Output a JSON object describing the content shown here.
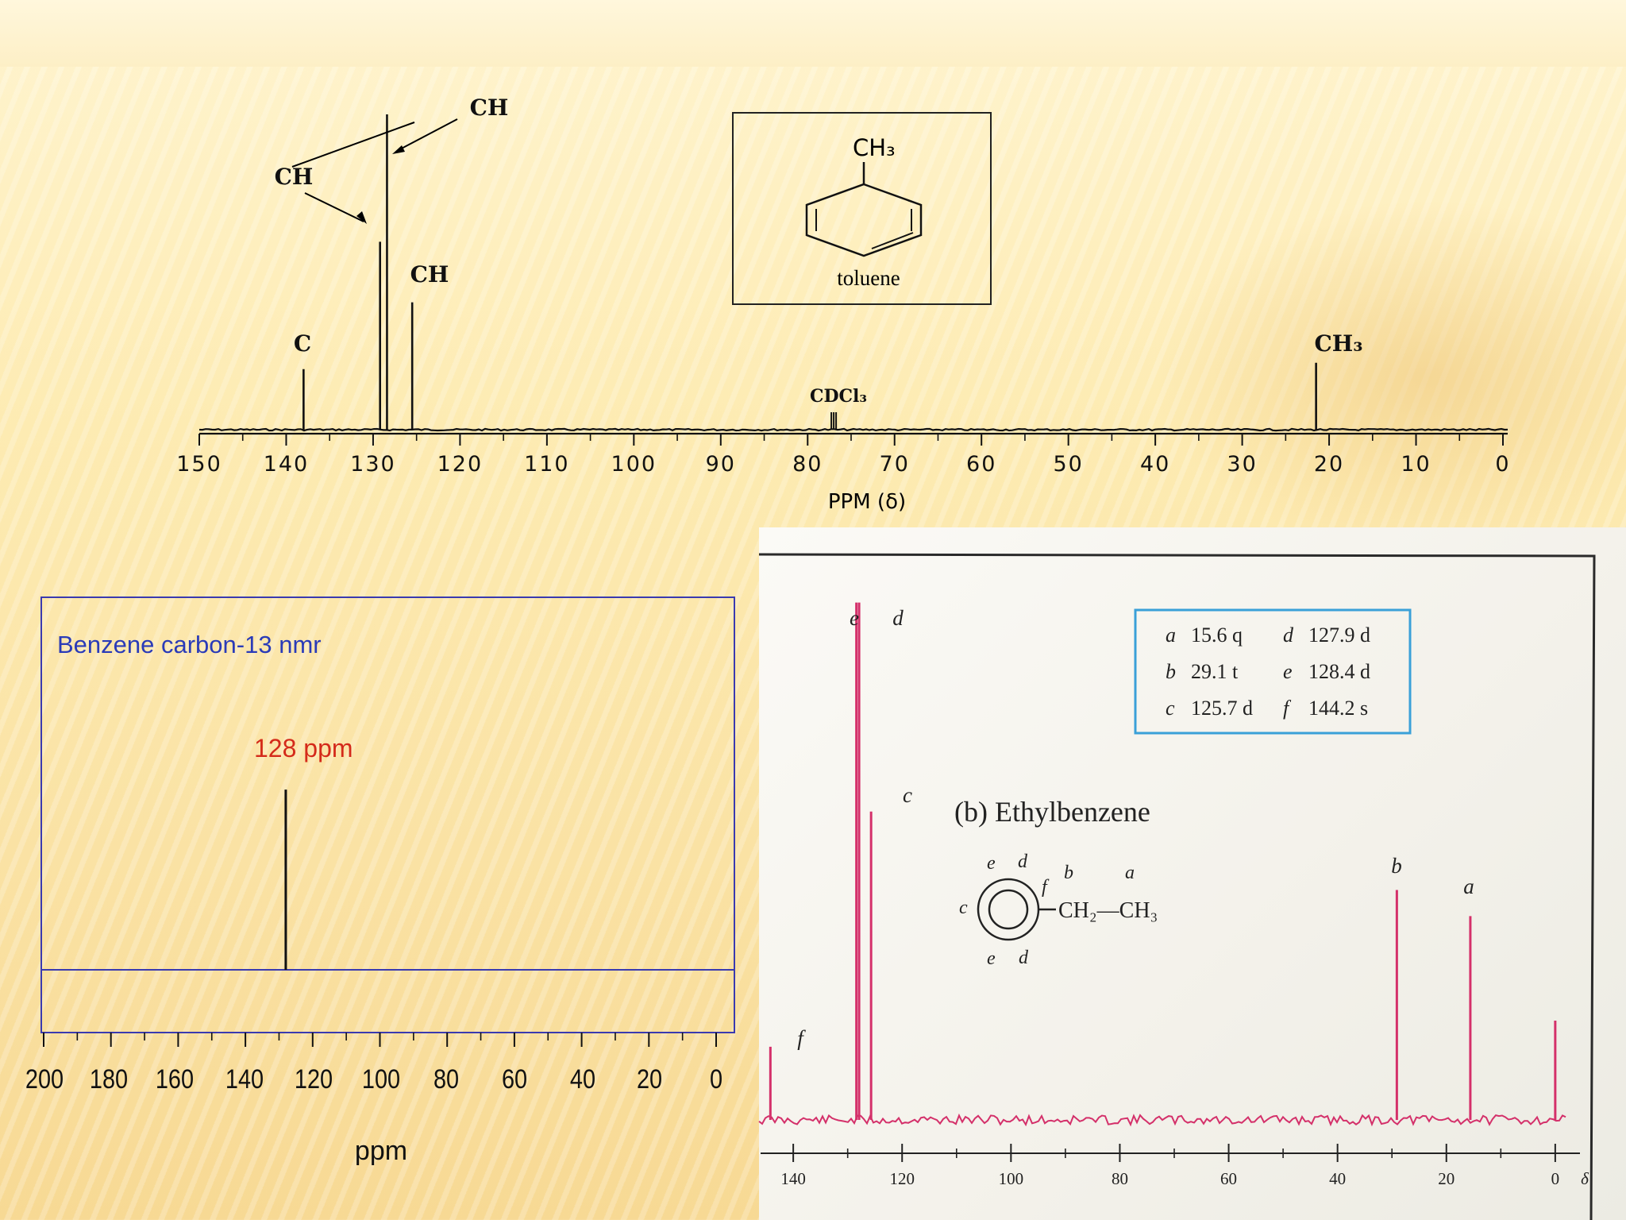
{
  "slide": {
    "background_color": "#fae2a4",
    "stripe_color": "#fff4cf"
  },
  "chart_data": [
    {
      "type": "line",
      "chart_id": "toluene",
      "xlabel": "PPM (δ)",
      "xlim": [
        150,
        0
      ],
      "x_reversed": true,
      "ticks": [
        "150",
        "140",
        "130",
        "120",
        "110",
        "100",
        "90",
        "80",
        "70",
        "60",
        "50",
        "40",
        "30",
        "20",
        "10",
        "0"
      ],
      "tick_values": [
        150,
        140,
        130,
        120,
        110,
        100,
        90,
        80,
        70,
        60,
        50,
        40,
        30,
        20,
        10,
        0
      ],
      "peaks": [
        {
          "ppm": 138.0,
          "height": 0.19,
          "label": "C"
        },
        {
          "ppm": 129.2,
          "height": 0.59,
          "label": "CH"
        },
        {
          "ppm": 128.4,
          "height": 0.99,
          "label": "CH"
        },
        {
          "ppm": 125.5,
          "height": 0.4,
          "label": "CH"
        },
        {
          "ppm": 77.0,
          "height": 0.04,
          "label": "CDCl₃"
        },
        {
          "ppm": 21.5,
          "height": 0.21,
          "label": "CH₃"
        }
      ],
      "structure_box": {
        "name": "toluene",
        "substituent": "CH₃"
      },
      "line_color": "#111111"
    },
    {
      "type": "line",
      "chart_id": "benzene",
      "title": "Benzene carbon-13 nmr",
      "xlabel": "ppm",
      "xlim": [
        200,
        0
      ],
      "x_reversed": true,
      "ticks": [
        "200",
        "180",
        "160",
        "140",
        "120",
        "100",
        "80",
        "60",
        "40",
        "20",
        "0"
      ],
      "tick_values": [
        200,
        180,
        160,
        140,
        120,
        100,
        80,
        60,
        40,
        20,
        0
      ],
      "peaks": [
        {
          "ppm": 128,
          "height": 0.96
        }
      ],
      "annotation": "128 ppm",
      "title_color": "#2a3bb8",
      "annotation_color": "#d42a1a",
      "frame_color": "#3a3ab0"
    },
    {
      "type": "line",
      "chart_id": "ethylbenzene",
      "title": "(b) Ethylbenzene",
      "xlim": [
        146,
        -6
      ],
      "x_reversed": true,
      "ticks": [
        "140",
        "120",
        "100",
        "80",
        "60",
        "40",
        "20",
        "0",
        "δ"
      ],
      "tick_values": [
        140,
        120,
        100,
        80,
        60,
        40,
        20,
        0
      ],
      "peaks": [
        {
          "ppm": 144.2,
          "height": 0.14,
          "label": "f"
        },
        {
          "ppm": 128.4,
          "height": 0.99,
          "label": "e"
        },
        {
          "ppm": 127.9,
          "height": 0.99,
          "label": "d"
        },
        {
          "ppm": 125.7,
          "height": 0.59,
          "label": "c"
        },
        {
          "ppm": 29.1,
          "height": 0.44,
          "label": "b"
        },
        {
          "ppm": 15.6,
          "height": 0.39,
          "label": "a"
        },
        {
          "ppm": 0.0,
          "height": 0.19
        }
      ],
      "assignments": [
        {
          "letter": "a",
          "value": "15.6 q"
        },
        {
          "letter": "b",
          "value": "29.1 t"
        },
        {
          "letter": "c",
          "value": "125.7 d"
        },
        {
          "letter": "d",
          "value": "127.9 d"
        },
        {
          "letter": "e",
          "value": "128.4 d"
        },
        {
          "letter": "f",
          "value": "144.2 s"
        }
      ],
      "structure": {
        "chain": "CH₂—CH₃"
      },
      "line_color": "#d4306a",
      "legend_border_color": "#3aa0d8"
    }
  ]
}
